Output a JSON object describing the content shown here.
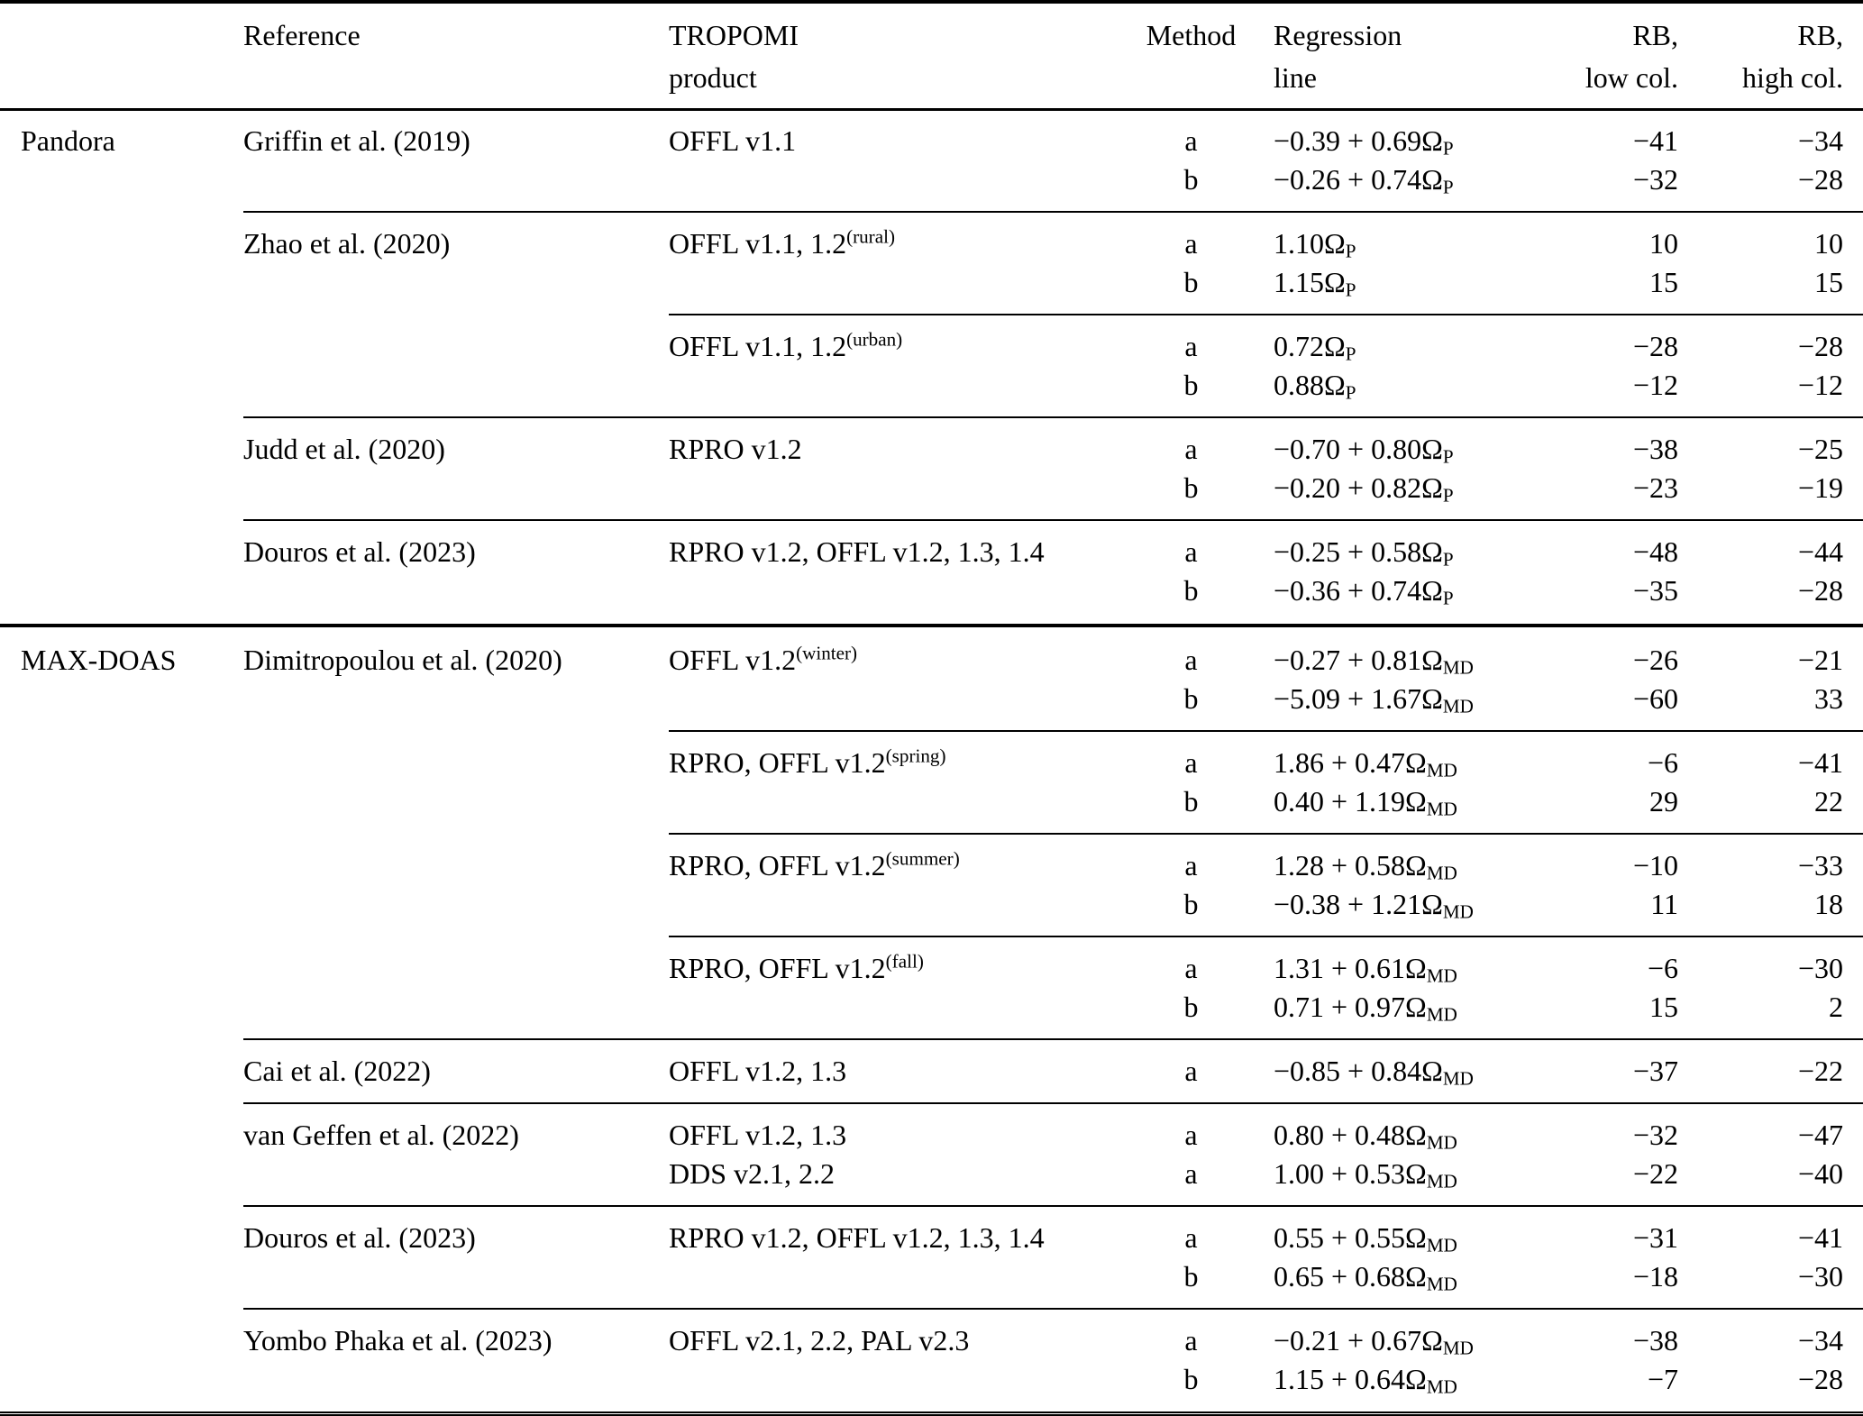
{
  "symbols": {
    "omega": "Ω"
  },
  "header": {
    "group": "",
    "reference": "Reference",
    "product": [
      "TROPOMI",
      "product"
    ],
    "method": "Method",
    "regression": [
      "Regression",
      "line"
    ],
    "rb_low": [
      "RB,",
      "low col."
    ],
    "rb_high": [
      "RB,",
      "high col."
    ]
  },
  "groups": [
    {
      "name": "Pandora",
      "references": [
        {
          "reference": "Griffin et al. (2019)",
          "products": [
            {
              "name": "OFFL v1.1",
              "sup": "",
              "rows": [
                {
                  "method": "a",
                  "formula": "−0.39 + 0.69",
                  "omega_sub": "P",
                  "rb_low": "−41",
                  "rb_high": "−34"
                },
                {
                  "method": "b",
                  "formula": "−0.26 + 0.74",
                  "omega_sub": "P",
                  "rb_low": "−32",
                  "rb_high": "−28"
                }
              ]
            }
          ]
        },
        {
          "reference": "Zhao et al. (2020)",
          "products": [
            {
              "name": "OFFL v1.1, 1.2",
              "sup": "(rural)",
              "rows": [
                {
                  "method": "a",
                  "formula": "1.10",
                  "omega_sub": "P",
                  "rb_low": "10",
                  "rb_high": "10"
                },
                {
                  "method": "b",
                  "formula": "1.15",
                  "omega_sub": "P",
                  "rb_low": "15",
                  "rb_high": "15"
                }
              ]
            },
            {
              "name": "OFFL v1.1, 1.2",
              "sup": "(urban)",
              "rows": [
                {
                  "method": "a",
                  "formula": "0.72",
                  "omega_sub": "P",
                  "rb_low": "−28",
                  "rb_high": "−28"
                },
                {
                  "method": "b",
                  "formula": "0.88",
                  "omega_sub": "P",
                  "rb_low": "−12",
                  "rb_high": "−12"
                }
              ]
            }
          ]
        },
        {
          "reference": "Judd et al. (2020)",
          "products": [
            {
              "name": "RPRO v1.2",
              "sup": "",
              "rows": [
                {
                  "method": "a",
                  "formula": "−0.70 + 0.80",
                  "omega_sub": "P",
                  "rb_low": "−38",
                  "rb_high": "−25"
                },
                {
                  "method": "b",
                  "formula": "−0.20 + 0.82",
                  "omega_sub": "P",
                  "rb_low": "−23",
                  "rb_high": "−19"
                }
              ]
            }
          ]
        },
        {
          "reference": "Douros et al. (2023)",
          "products": [
            {
              "name": "RPRO v1.2, OFFL v1.2, 1.3, 1.4",
              "sup": "",
              "rows": [
                {
                  "method": "a",
                  "formula": "−0.25 + 0.58",
                  "omega_sub": "P",
                  "rb_low": "−48",
                  "rb_high": "−44"
                },
                {
                  "method": "b",
                  "formula": "−0.36 + 0.74",
                  "omega_sub": "P",
                  "rb_low": "−35",
                  "rb_high": "−28"
                }
              ]
            }
          ]
        }
      ]
    },
    {
      "name": "MAX-DOAS",
      "references": [
        {
          "reference": "Dimitropoulou et al. (2020)",
          "products": [
            {
              "name": "OFFL v1.2",
              "sup": "(winter)",
              "rows": [
                {
                  "method": "a",
                  "formula": "−0.27 + 0.81",
                  "omega_sub": "MD",
                  "rb_low": "−26",
                  "rb_high": "−21"
                },
                {
                  "method": "b",
                  "formula": "−5.09 + 1.67",
                  "omega_sub": "MD",
                  "rb_low": "−60",
                  "rb_high": "33"
                }
              ]
            },
            {
              "name": "RPRO, OFFL v1.2",
              "sup": "(spring)",
              "rows": [
                {
                  "method": "a",
                  "formula": "1.86 + 0.47",
                  "omega_sub": "MD",
                  "rb_low": "−6",
                  "rb_high": "−41"
                },
                {
                  "method": "b",
                  "formula": "0.40 + 1.19",
                  "omega_sub": "MD",
                  "rb_low": "29",
                  "rb_high": "22"
                }
              ]
            },
            {
              "name": "RPRO, OFFL v1.2",
              "sup": "(summer)",
              "rows": [
                {
                  "method": "a",
                  "formula": "1.28 + 0.58",
                  "omega_sub": "MD",
                  "rb_low": "−10",
                  "rb_high": "−33"
                },
                {
                  "method": "b",
                  "formula": "−0.38 + 1.21",
                  "omega_sub": "MD",
                  "rb_low": "11",
                  "rb_high": "18"
                }
              ]
            },
            {
              "name": "RPRO, OFFL v1.2",
              "sup": "(fall)",
              "rows": [
                {
                  "method": "a",
                  "formula": "1.31 + 0.61",
                  "omega_sub": "MD",
                  "rb_low": "−6",
                  "rb_high": "−30"
                },
                {
                  "method": "b",
                  "formula": "0.71 + 0.97",
                  "omega_sub": "MD",
                  "rb_low": "15",
                  "rb_high": "2"
                }
              ]
            }
          ]
        },
        {
          "reference": "Cai et al. (2022)",
          "products": [
            {
              "name": "OFFL v1.2, 1.3",
              "sup": "",
              "rows": [
                {
                  "method": "a",
                  "formula": "−0.85 + 0.84",
                  "omega_sub": "MD",
                  "rb_low": "−37",
                  "rb_high": "−22"
                }
              ]
            }
          ]
        },
        {
          "reference": "van Geffen et al. (2022)",
          "products": [
            {
              "name": "OFFL v1.2, 1.3",
              "sup": "",
              "rows": [
                {
                  "method": "a",
                  "formula": "0.80 + 0.48",
                  "omega_sub": "MD",
                  "rb_low": "−32",
                  "rb_high": "−47"
                }
              ]
            },
            {
              "name": "DDS v2.1, 2.2",
              "sup": "",
              "sep_before": false,
              "rows": [
                {
                  "method": "a",
                  "formula": "1.00 + 0.53",
                  "omega_sub": "MD",
                  "rb_low": "−22",
                  "rb_high": "−40"
                }
              ]
            }
          ]
        },
        {
          "reference": "Douros et al. (2023)",
          "products": [
            {
              "name": "RPRO v1.2, OFFL v1.2, 1.3, 1.4",
              "sup": "",
              "rows": [
                {
                  "method": "a",
                  "formula": "0.55 + 0.55",
                  "omega_sub": "MD",
                  "rb_low": "−31",
                  "rb_high": "−41"
                },
                {
                  "method": "b",
                  "formula": "0.65 + 0.68",
                  "omega_sub": "MD",
                  "rb_low": "−18",
                  "rb_high": "−30"
                }
              ]
            }
          ]
        },
        {
          "reference": "Yombo Phaka et al. (2023)",
          "products": [
            {
              "name": "OFFL v2.1, 2.2, PAL v2.3",
              "sup": "",
              "rows": [
                {
                  "method": "a",
                  "formula": "−0.21 + 0.67",
                  "omega_sub": "MD",
                  "rb_low": "−38",
                  "rb_high": "−34"
                },
                {
                  "method": "b",
                  "formula": "1.15 + 0.64",
                  "omega_sub": "MD",
                  "rb_low": "−7",
                  "rb_high": "−28"
                }
              ]
            }
          ]
        }
      ]
    }
  ]
}
